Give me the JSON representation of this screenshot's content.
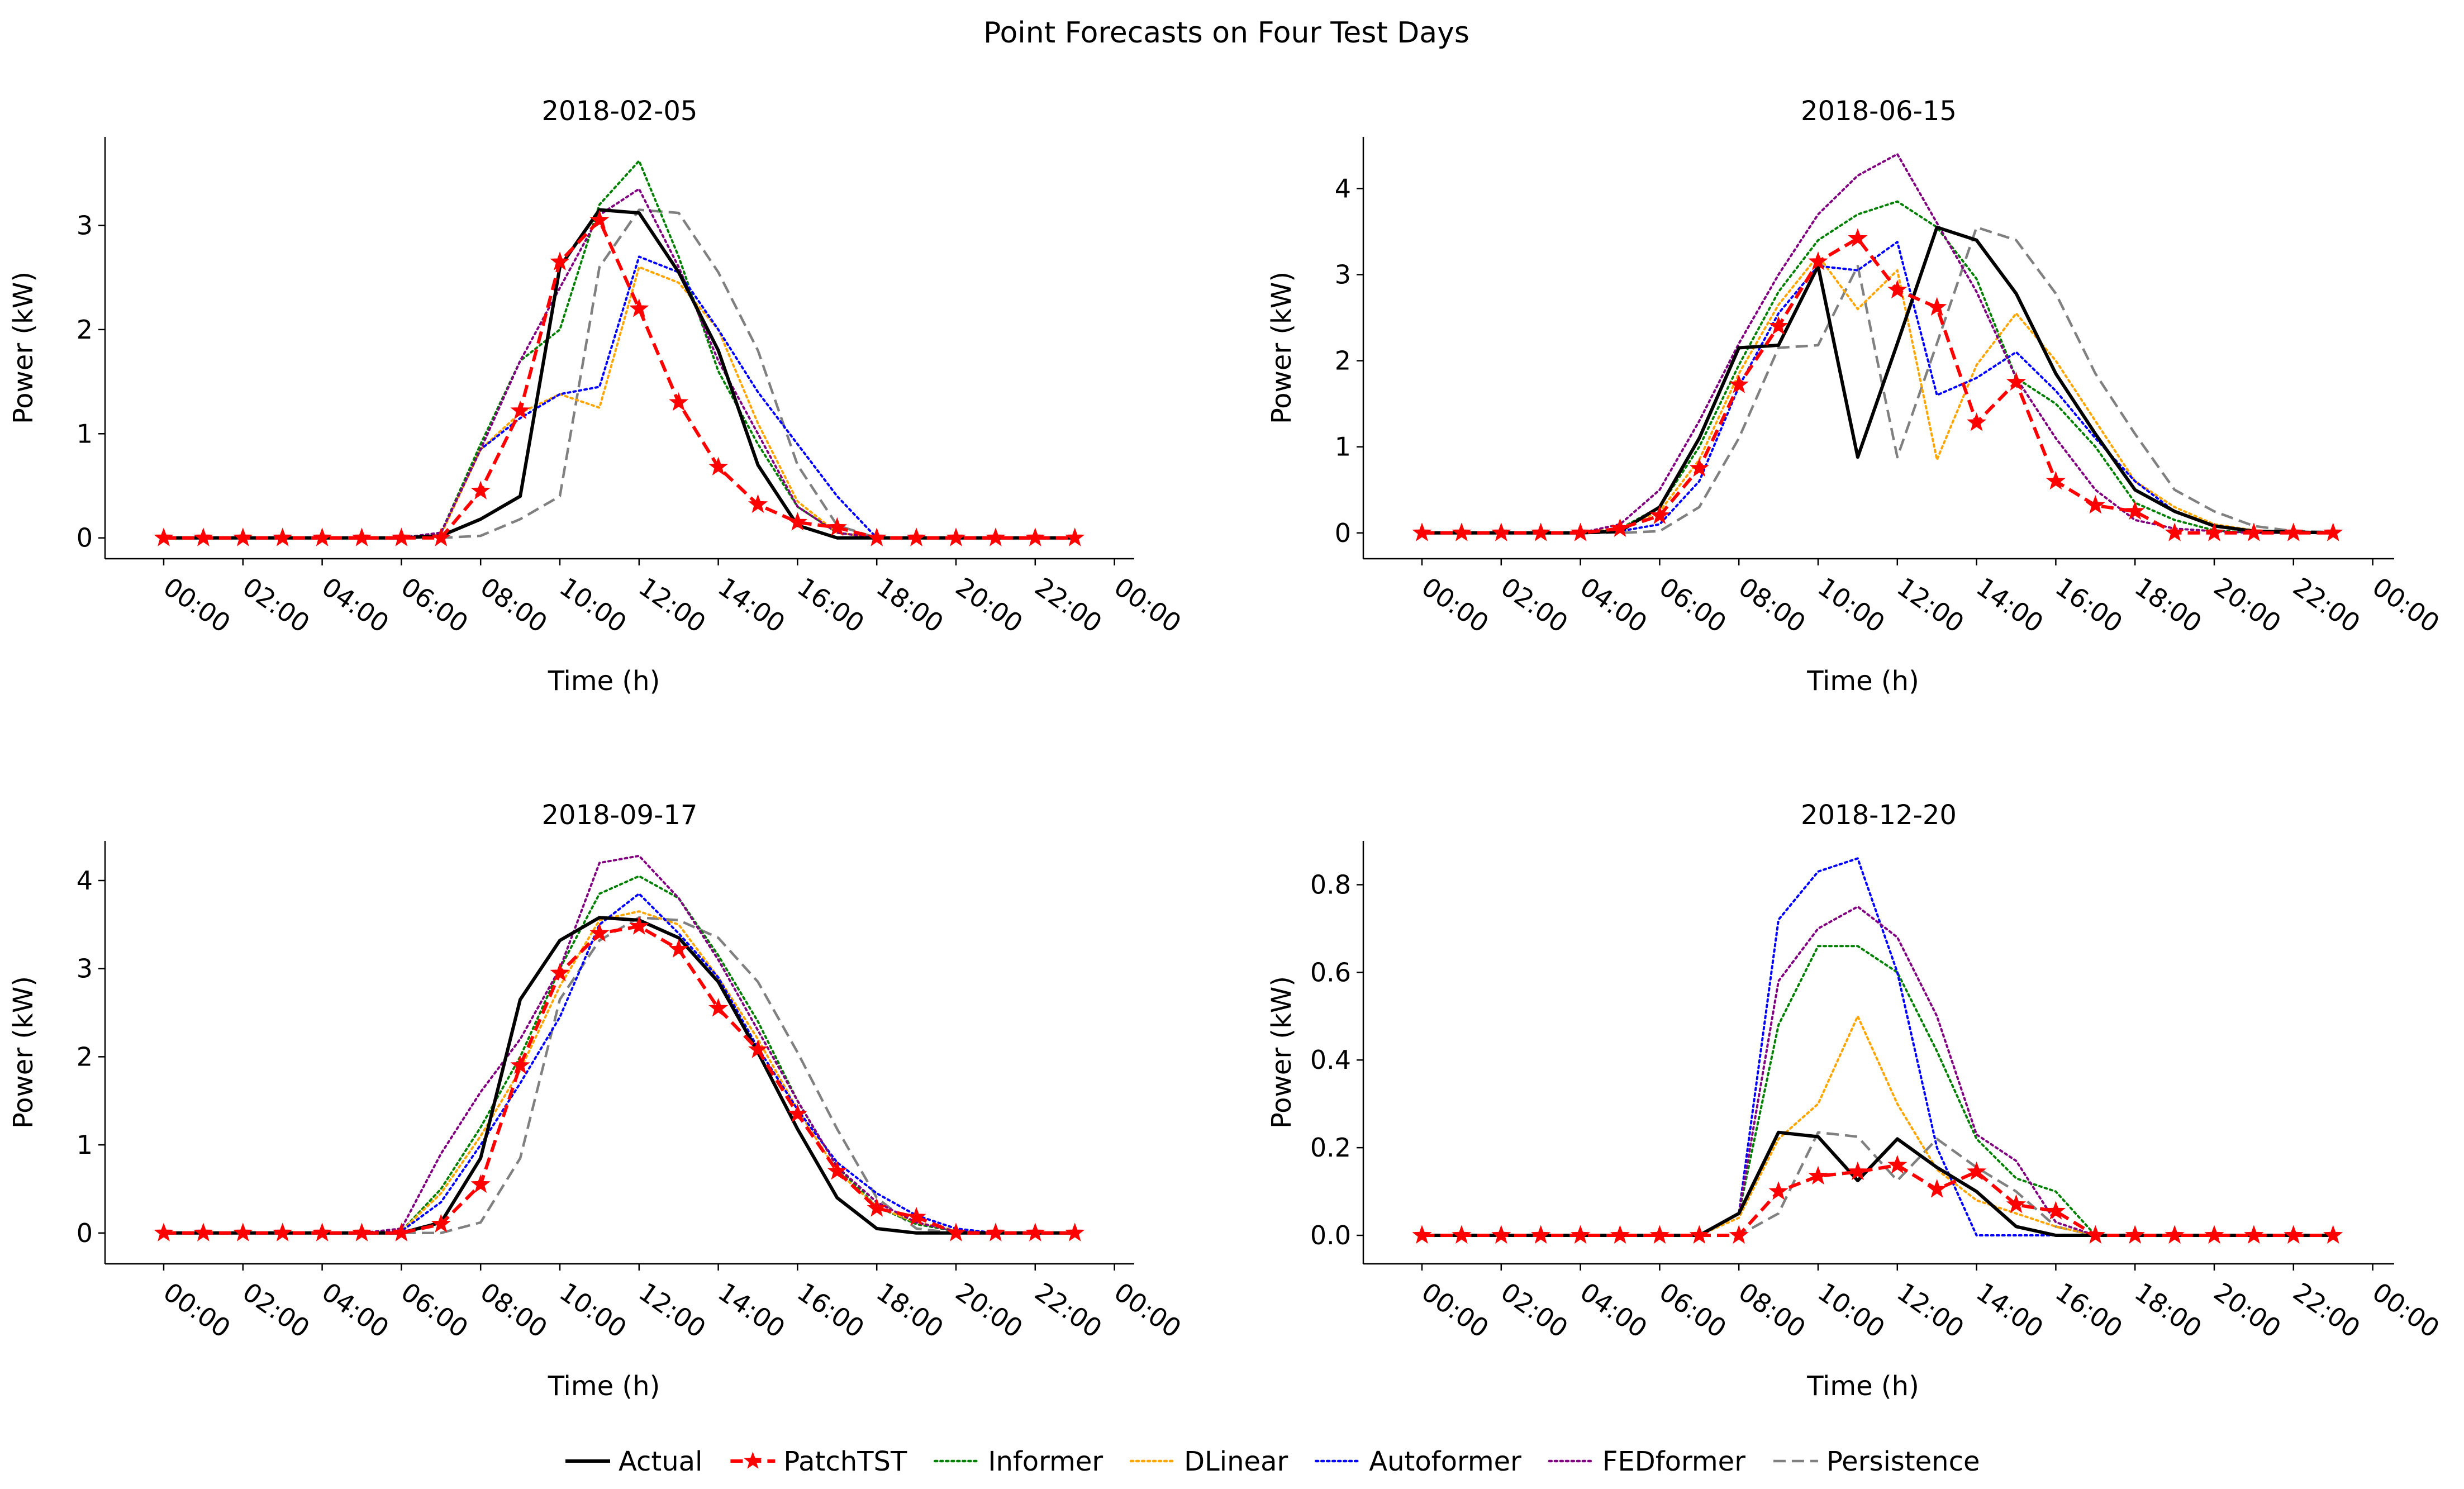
{
  "figure": {
    "title": "Point Forecasts on Four Test Days"
  },
  "legend": {
    "placement": "bottom-center",
    "items": [
      {
        "name": "Actual",
        "color": "#000000",
        "dash": "solid",
        "marker": "none"
      },
      {
        "name": "PatchTST",
        "color": "#ff0000",
        "dash": "dashed",
        "marker": "star"
      },
      {
        "name": "Informer",
        "color": "#008000",
        "dash": "dotted",
        "marker": "none"
      },
      {
        "name": "DLinear",
        "color": "#ffa500",
        "dash": "dotted",
        "marker": "none"
      },
      {
        "name": "Autoformer",
        "color": "#0000ff",
        "dash": "dotted",
        "marker": "none"
      },
      {
        "name": "FEDformer",
        "color": "#800080",
        "dash": "dotted",
        "marker": "none"
      },
      {
        "name": "Persistence",
        "color": "#808080",
        "dash": "dashed",
        "marker": "none"
      }
    ]
  },
  "chart_data": [
    {
      "type": "line",
      "title": "2018-02-05",
      "xlabel": "Time (h)",
      "ylabel": "Power (kW)",
      "x_hours": [
        0,
        1,
        2,
        3,
        4,
        5,
        6,
        7,
        8,
        9,
        10,
        11,
        12,
        13,
        14,
        15,
        16,
        17,
        18,
        19,
        20,
        21,
        22,
        23
      ],
      "x_tick_labels": [
        "00:00",
        "02:00",
        "04:00",
        "06:00",
        "08:00",
        "10:00",
        "12:00",
        "14:00",
        "16:00",
        "18:00",
        "20:00",
        "22:00",
        "00:00"
      ],
      "y_ticks": [
        0,
        1,
        2,
        3
      ],
      "ylim": [
        -0.2,
        3.85
      ],
      "grid": false,
      "series": [
        {
          "name": "Actual",
          "values": [
            0,
            0,
            0,
            0,
            0,
            0,
            0,
            0.02,
            0.18,
            0.4,
            2.6,
            3.15,
            3.12,
            2.55,
            1.8,
            0.7,
            0.12,
            0,
            0,
            0,
            0,
            0,
            0,
            0
          ]
        },
        {
          "name": "PatchTST",
          "values": [
            0,
            0,
            0,
            0,
            0,
            0,
            0,
            0,
            0.45,
            1.22,
            2.65,
            3.05,
            2.2,
            1.3,
            0.68,
            0.32,
            0.15,
            0.1,
            0,
            0,
            0,
            0,
            0,
            0
          ]
        },
        {
          "name": "Informer",
          "values": [
            0,
            0,
            0,
            0,
            0,
            0,
            0,
            0.05,
            0.9,
            1.7,
            2.0,
            3.2,
            3.62,
            2.7,
            1.6,
            0.9,
            0.3,
            0.05,
            0,
            0,
            0,
            0,
            0,
            0
          ]
        },
        {
          "name": "DLinear",
          "values": [
            0,
            0,
            0,
            0,
            0,
            0,
            0,
            0.03,
            0.85,
            1.2,
            1.38,
            1.25,
            2.6,
            2.45,
            2.0,
            1.1,
            0.35,
            0.05,
            0,
            0,
            0,
            0,
            0,
            0
          ]
        },
        {
          "name": "Autoformer",
          "values": [
            0,
            0,
            0,
            0,
            0,
            0,
            0,
            0.05,
            0.85,
            1.15,
            1.38,
            1.45,
            2.7,
            2.55,
            2.0,
            1.4,
            0.9,
            0.4,
            0,
            0,
            0,
            0,
            0,
            0
          ]
        },
        {
          "name": "FEDformer",
          "values": [
            0,
            0,
            0,
            0,
            0,
            0,
            0,
            0.05,
            0.85,
            1.7,
            2.4,
            3.1,
            3.35,
            2.6,
            1.7,
            1.0,
            0.3,
            0.05,
            0,
            0,
            0,
            0,
            0,
            0
          ]
        },
        {
          "name": "Persistence",
          "values": [
            0,
            0,
            0,
            0,
            0,
            0,
            0,
            0,
            0.02,
            0.18,
            0.4,
            2.6,
            3.15,
            3.12,
            2.55,
            1.8,
            0.7,
            0.12,
            0,
            0,
            0,
            0,
            0,
            0
          ]
        }
      ]
    },
    {
      "type": "line",
      "title": "2018-06-15",
      "xlabel": "Time (h)",
      "ylabel": "Power (kW)",
      "x_hours": [
        0,
        1,
        2,
        3,
        4,
        5,
        6,
        7,
        8,
        9,
        10,
        11,
        12,
        13,
        14,
        15,
        16,
        17,
        18,
        19,
        20,
        21,
        22,
        23
      ],
      "x_tick_labels": [
        "00:00",
        "02:00",
        "04:00",
        "06:00",
        "08:00",
        "10:00",
        "12:00",
        "14:00",
        "16:00",
        "18:00",
        "20:00",
        "22:00",
        "00:00"
      ],
      "y_ticks": [
        0,
        1,
        2,
        3,
        4
      ],
      "ylim": [
        -0.3,
        4.6
      ],
      "grid": false,
      "series": [
        {
          "name": "Actual",
          "values": [
            0,
            0,
            0,
            0,
            0,
            0.02,
            0.3,
            1.1,
            2.15,
            2.18,
            3.1,
            0.88,
            2.2,
            3.55,
            3.4,
            2.78,
            1.85,
            1.15,
            0.5,
            0.25,
            0.08,
            0.02,
            0.01,
            0
          ]
        },
        {
          "name": "PatchTST",
          "values": [
            0,
            0,
            0,
            0,
            0,
            0.05,
            0.2,
            0.75,
            1.72,
            2.4,
            3.15,
            3.42,
            2.82,
            2.62,
            1.28,
            1.75,
            0.6,
            0.32,
            0.25,
            0,
            0,
            0,
            0,
            0
          ]
        },
        {
          "name": "Informer",
          "values": [
            0,
            0,
            0,
            0,
            0,
            0.05,
            0.3,
            1.0,
            1.95,
            2.8,
            3.4,
            3.7,
            3.85,
            3.55,
            2.95,
            1.8,
            1.5,
            1.0,
            0.35,
            0.15,
            0.03,
            0,
            0,
            0
          ]
        },
        {
          "name": "DLinear",
          "values": [
            0,
            0,
            0,
            0,
            0,
            0.05,
            0.25,
            0.85,
            1.85,
            2.65,
            3.22,
            2.6,
            3.05,
            0.85,
            1.95,
            2.55,
            2.0,
            1.3,
            0.6,
            0.3,
            0.1,
            0.03,
            0.01,
            0
          ]
        },
        {
          "name": "Autoformer",
          "values": [
            0,
            0,
            0,
            0,
            0,
            0.02,
            0.1,
            0.6,
            1.7,
            2.55,
            3.1,
            3.05,
            3.38,
            1.6,
            1.8,
            2.1,
            1.65,
            1.1,
            0.6,
            0.25,
            0.08,
            0.02,
            0,
            0
          ]
        },
        {
          "name": "FEDformer",
          "values": [
            0,
            0,
            0,
            0,
            0,
            0.1,
            0.5,
            1.3,
            2.2,
            3.0,
            3.7,
            4.15,
            4.4,
            3.6,
            2.8,
            1.8,
            1.1,
            0.5,
            0.15,
            0.05,
            0.02,
            0,
            0,
            0
          ]
        },
        {
          "name": "Persistence",
          "values": [
            0,
            0,
            0,
            0,
            0,
            0,
            0.02,
            0.3,
            1.1,
            2.15,
            2.18,
            3.1,
            0.88,
            2.2,
            3.55,
            3.4,
            2.78,
            1.85,
            1.15,
            0.5,
            0.25,
            0.08,
            0.02,
            0.01
          ]
        }
      ]
    },
    {
      "type": "line",
      "title": "2018-09-17",
      "xlabel": "Time (h)",
      "ylabel": "Power (kW)",
      "x_hours": [
        0,
        1,
        2,
        3,
        4,
        5,
        6,
        7,
        8,
        9,
        10,
        11,
        12,
        13,
        14,
        15,
        16,
        17,
        18,
        19,
        20,
        21,
        22,
        23
      ],
      "x_tick_labels": [
        "00:00",
        "02:00",
        "04:00",
        "06:00",
        "08:00",
        "10:00",
        "12:00",
        "14:00",
        "16:00",
        "18:00",
        "20:00",
        "22:00",
        "00:00"
      ],
      "y_ticks": [
        0,
        1,
        2,
        3,
        4
      ],
      "ylim": [
        -0.35,
        4.45
      ],
      "grid": false,
      "series": [
        {
          "name": "Actual",
          "values": [
            0,
            0,
            0,
            0,
            0,
            0,
            0,
            0.12,
            0.85,
            2.65,
            3.32,
            3.58,
            3.55,
            3.35,
            2.85,
            2.05,
            1.18,
            0.4,
            0.05,
            0,
            0,
            0,
            0,
            0
          ]
        },
        {
          "name": "PatchTST",
          "values": [
            0,
            0,
            0,
            0,
            0,
            0,
            0,
            0.1,
            0.55,
            1.9,
            2.95,
            3.4,
            3.48,
            3.22,
            2.55,
            2.08,
            1.35,
            0.7,
            0.28,
            0.18,
            0,
            0,
            0,
            0
          ]
        },
        {
          "name": "Informer",
          "values": [
            0,
            0,
            0,
            0,
            0,
            0,
            0.02,
            0.5,
            1.2,
            2.0,
            3.0,
            3.85,
            4.05,
            3.8,
            3.15,
            2.4,
            1.5,
            0.75,
            0.3,
            0.1,
            0.02,
            0,
            0,
            0
          ]
        },
        {
          "name": "DLinear",
          "values": [
            0,
            0,
            0,
            0,
            0,
            0,
            0.02,
            0.45,
            1.1,
            1.85,
            2.8,
            3.55,
            3.65,
            3.5,
            2.9,
            2.2,
            1.4,
            0.7,
            0.3,
            0.12,
            0.03,
            0,
            0,
            0
          ]
        },
        {
          "name": "Autoformer",
          "values": [
            0,
            0,
            0,
            0,
            0,
            0,
            0.02,
            0.35,
            1.0,
            1.7,
            2.45,
            3.5,
            3.85,
            3.4,
            2.9,
            2.1,
            1.4,
            0.8,
            0.45,
            0.2,
            0.05,
            0,
            0,
            0
          ]
        },
        {
          "name": "FEDformer",
          "values": [
            0,
            0,
            0,
            0,
            0,
            0,
            0.05,
            0.9,
            1.6,
            2.2,
            3.0,
            4.2,
            4.28,
            3.8,
            3.1,
            2.3,
            1.5,
            0.75,
            0.35,
            0.12,
            0.02,
            0,
            0,
            0
          ]
        },
        {
          "name": "Persistence",
          "values": [
            0,
            0,
            0,
            0,
            0,
            0,
            0,
            0,
            0.12,
            0.85,
            2.65,
            3.32,
            3.58,
            3.55,
            3.35,
            2.85,
            2.05,
            1.18,
            0.4,
            0.05,
            0,
            0,
            0,
            0
          ]
        }
      ]
    },
    {
      "type": "line",
      "title": "2018-12-20",
      "xlabel": "Time (h)",
      "ylabel": "Power (kW)",
      "x_hours": [
        0,
        1,
        2,
        3,
        4,
        5,
        6,
        7,
        8,
        9,
        10,
        11,
        12,
        13,
        14,
        15,
        16,
        17,
        18,
        19,
        20,
        21,
        22,
        23
      ],
      "x_tick_labels": [
        "00:00",
        "02:00",
        "04:00",
        "06:00",
        "08:00",
        "10:00",
        "12:00",
        "14:00",
        "16:00",
        "18:00",
        "20:00",
        "22:00",
        "00:00"
      ],
      "y_ticks": [
        0,
        0.2,
        0.4,
        0.6,
        0.8
      ],
      "ylim": [
        -0.065,
        0.9
      ],
      "grid": false,
      "series": [
        {
          "name": "Actual",
          "values": [
            0,
            0,
            0,
            0,
            0,
            0,
            0,
            0,
            0.05,
            0.235,
            0.225,
            0.125,
            0.22,
            0.155,
            0.1,
            0.02,
            0,
            0,
            0,
            0,
            0,
            0,
            0,
            0
          ]
        },
        {
          "name": "PatchTST",
          "values": [
            0,
            0,
            0,
            0,
            0,
            0,
            0,
            0,
            0,
            0.1,
            0.135,
            0.145,
            0.16,
            0.105,
            0.145,
            0.07,
            0.055,
            0,
            0,
            0,
            0,
            0,
            0,
            0
          ]
        },
        {
          "name": "Informer",
          "values": [
            0,
            0,
            0,
            0,
            0,
            0,
            0,
            0,
            0.05,
            0.48,
            0.66,
            0.66,
            0.6,
            0.42,
            0.22,
            0.13,
            0.1,
            0,
            0,
            0,
            0,
            0,
            0,
            0
          ]
        },
        {
          "name": "DLinear",
          "values": [
            0,
            0,
            0,
            0,
            0,
            0,
            0,
            0,
            0.04,
            0.22,
            0.3,
            0.5,
            0.3,
            0.15,
            0.08,
            0.05,
            0.02,
            0,
            0,
            0,
            0,
            0,
            0,
            0
          ]
        },
        {
          "name": "Autoformer",
          "values": [
            0,
            0,
            0,
            0,
            0,
            0,
            0,
            0,
            0.05,
            0.72,
            0.83,
            0.86,
            0.6,
            0.2,
            0,
            0,
            0,
            0,
            0,
            0,
            0,
            0,
            0,
            0
          ]
        },
        {
          "name": "FEDformer",
          "values": [
            0,
            0,
            0,
            0,
            0,
            0,
            0,
            0,
            0.05,
            0.58,
            0.7,
            0.75,
            0.68,
            0.5,
            0.23,
            0.17,
            0.03,
            0,
            0,
            0,
            0,
            0,
            0,
            0
          ]
        },
        {
          "name": "Persistence",
          "values": [
            0,
            0,
            0,
            0,
            0,
            0,
            0,
            0,
            0,
            0.05,
            0.235,
            0.225,
            0.125,
            0.22,
            0.155,
            0.1,
            0.02,
            0,
            0,
            0,
            0,
            0,
            0,
            0
          ]
        }
      ]
    }
  ]
}
